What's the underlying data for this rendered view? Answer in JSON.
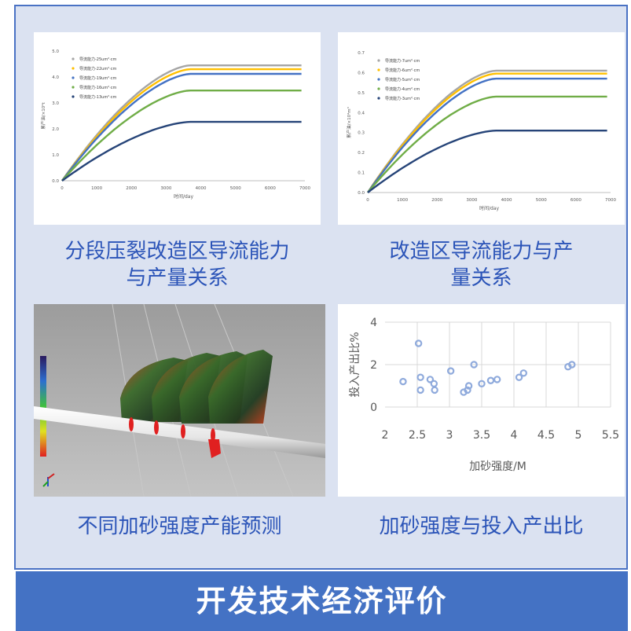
{
  "colors": {
    "frame_border": "#4a72c4",
    "frame_bg": "#dbe2f1",
    "caption": "#2b54b8",
    "footer_bg": "#4472c4",
    "footer_text": "#ffffff",
    "scatter_marker": "#8faadc"
  },
  "captions": {
    "c1_line1": "分段压裂改造区导流能力",
    "c1_line2": "与产量关系",
    "c2_line1": "改造区导流能力与产",
    "c2_line2": "量关系",
    "c3": "不同加砂强度产能预测",
    "c4": "加砂强度与投入产出比"
  },
  "footer": {
    "title": "开发技术经济评价"
  },
  "chart_data": [
    {
      "type": "line",
      "xlabel": "时间/day",
      "ylabel": "累产油/×10⁴t",
      "xlim": [
        0,
        7000
      ],
      "ylim": [
        0,
        5.0
      ],
      "xticks": [
        "0",
        "1000",
        "2000",
        "3000",
        "4000",
        "5000",
        "6000",
        "7000"
      ],
      "yticks": [
        "0.0",
        "1.0",
        "2.0",
        "3.0",
        "4.0",
        "5.0"
      ],
      "legend_position": "top-left",
      "series": [
        {
          "name": "导流能力-25um²·cm",
          "color": "#a5a5a5",
          "plateau": 4.45
        },
        {
          "name": "导流能力-22um²·cm",
          "color": "#ffc000",
          "plateau": 4.3
        },
        {
          "name": "导流能力-19um²·cm",
          "color": "#4472c4",
          "plateau": 4.12
        },
        {
          "name": "导流能力-16um²·cm",
          "color": "#70ad47",
          "plateau": 3.48
        },
        {
          "name": "导流能力-13um²·cm",
          "color": "#264478",
          "plateau": 2.27
        }
      ]
    },
    {
      "type": "line",
      "xlabel": "时间/day",
      "ylabel": "累产油/×10⁴m³",
      "xlim": [
        0,
        7000
      ],
      "ylim": [
        0,
        0.7
      ],
      "xticks": [
        "0",
        "1000",
        "2000",
        "3000",
        "4000",
        "5000",
        "6000",
        "7000"
      ],
      "yticks": [
        "0.0",
        "0.1",
        "0.2",
        "0.3",
        "0.4",
        "0.5",
        "0.6",
        "0.7"
      ],
      "legend_position": "top-left",
      "series": [
        {
          "name": "导流能力-7um²·cm",
          "color": "#a5a5a5",
          "plateau": 0.61
        },
        {
          "name": "导流能力-6um²·cm",
          "color": "#ffc000",
          "plateau": 0.595
        },
        {
          "name": "导流能力-5um²·cm",
          "color": "#4472c4",
          "plateau": 0.57
        },
        {
          "name": "导流能力-4um²·cm",
          "color": "#70ad47",
          "plateau": 0.48
        },
        {
          "name": "导流能力-3um²·cm",
          "color": "#264478",
          "plateau": 0.31
        }
      ]
    },
    {
      "type": "scatter",
      "xlabel": "加砂强度/M",
      "ylabel": "投入产出比%",
      "xlim": [
        2,
        5.5
      ],
      "ylim": [
        0,
        4
      ],
      "xticks": [
        "2",
        "2.5",
        "3",
        "3.5",
        "4",
        "4.5",
        "5",
        "5.5"
      ],
      "yticks": [
        "0",
        "2",
        "4"
      ],
      "points": [
        [
          2.28,
          1.2
        ],
        [
          2.52,
          3.0
        ],
        [
          2.55,
          1.4
        ],
        [
          2.55,
          0.8
        ],
        [
          2.7,
          1.3
        ],
        [
          2.76,
          1.1
        ],
        [
          2.77,
          0.8
        ],
        [
          3.02,
          1.7
        ],
        [
          3.22,
          0.7
        ],
        [
          3.28,
          0.8
        ],
        [
          3.3,
          1.0
        ],
        [
          3.38,
          2.0
        ],
        [
          3.5,
          1.1
        ],
        [
          3.64,
          1.25
        ],
        [
          3.74,
          1.3
        ],
        [
          4.08,
          1.4
        ],
        [
          4.15,
          1.6
        ],
        [
          4.84,
          1.9
        ],
        [
          4.9,
          2.0
        ]
      ]
    }
  ]
}
